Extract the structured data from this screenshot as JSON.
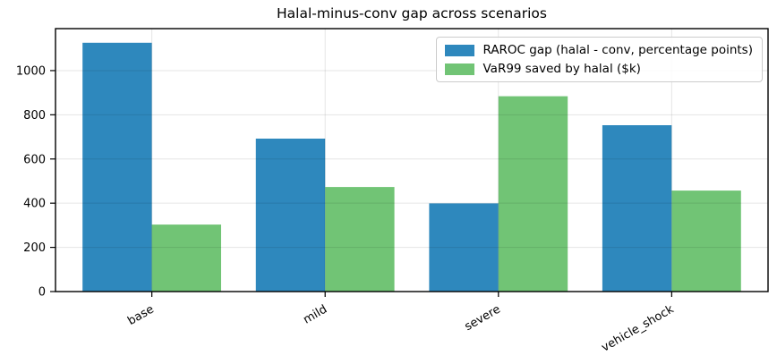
{
  "figure": {
    "background": "#ffffff",
    "text_color": "#000000",
    "grid_color": "rgba(0,0,0,0.10)",
    "frame_color": "#000000"
  },
  "chart_data": {
    "type": "bar",
    "title": "Halal-minus-conv gap across scenarios",
    "xlabel": "",
    "ylabel": "",
    "categories": [
      "base",
      "mild",
      "severe",
      "vehicle_shock"
    ],
    "series": [
      {
        "name": "RAROC gap (halal - conv, percentage points)",
        "color": "#2e88bd",
        "values": [
          1126,
          692,
          399,
          753
        ]
      },
      {
        "name": "VaR99 saved by halal ($k)",
        "color": "#71c475",
        "values": [
          303,
          473,
          884,
          457
        ]
      }
    ],
    "ylim": [
      0,
      1190
    ],
    "yticks": [
      0,
      200,
      400,
      600,
      800,
      1000
    ],
    "bar_width": 0.4,
    "group_padding": 0.556,
    "grid": true,
    "grid_above_bars": true,
    "legend_position": "upper right",
    "x_tick_rotation": 30
  }
}
